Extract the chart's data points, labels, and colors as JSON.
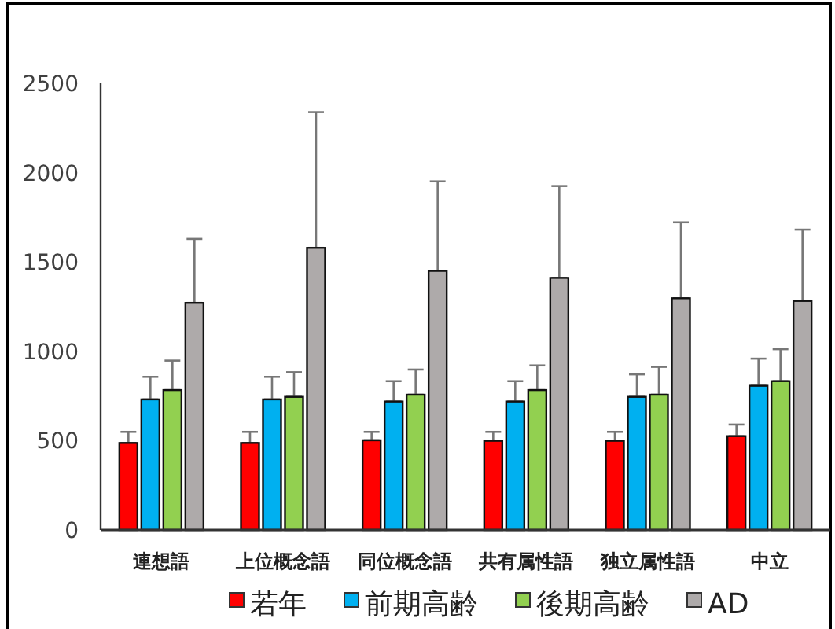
{
  "chart_data": {
    "type": "bar",
    "categories": [
      "連想語",
      "上位概念語",
      "同位概念語",
      "共有属性語",
      "独立属性語",
      "中立"
    ],
    "series": [
      {
        "name": "若年",
        "color": "#ff0000",
        "values": [
          487,
          487,
          502,
          499,
          499,
          525
        ],
        "errors": [
          [
            487,
            549
          ],
          [
            487,
            549
          ],
          [
            502,
            549
          ],
          [
            499,
            549
          ],
          [
            499,
            549
          ],
          [
            525,
            590
          ]
        ]
      },
      {
        "name": "前期高齢",
        "color": "#00b0f0",
        "values": [
          731,
          731,
          719,
          719,
          745,
          807
        ],
        "errors": [
          [
            731,
            857
          ],
          [
            731,
            857
          ],
          [
            719,
            833
          ],
          [
            719,
            833
          ],
          [
            745,
            871
          ],
          [
            807,
            959
          ]
        ]
      },
      {
        "name": "後期高齢",
        "color": "#92d050",
        "values": [
          783,
          745,
          757,
          783,
          757,
          833
        ],
        "errors": [
          [
            783,
            948
          ],
          [
            745,
            883
          ],
          [
            757,
            898
          ],
          [
            783,
            921
          ],
          [
            757,
            913
          ],
          [
            833,
            1012
          ]
        ]
      },
      {
        "name": "AD",
        "color": "#aeaaaa",
        "values": [
          1271,
          1579,
          1450,
          1411,
          1297,
          1282
        ],
        "errors": [
          [
            1271,
            1629
          ],
          [
            1579,
            2339
          ],
          [
            1450,
            1951
          ],
          [
            1411,
            1925
          ],
          [
            1297,
            1722
          ],
          [
            1282,
            1681
          ]
        ]
      }
    ],
    "ylim": [
      0,
      2500
    ],
    "yticks": [
      0,
      500,
      1000,
      1500,
      2000,
      2500
    ],
    "grid": false,
    "legend": "bottom"
  }
}
